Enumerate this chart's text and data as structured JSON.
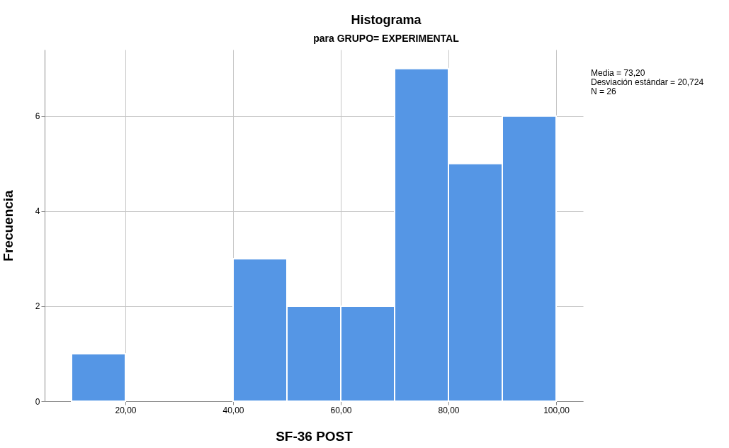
{
  "chart_data": {
    "type": "histogram",
    "title": "Histograma",
    "subtitle": "para GRUPO= EXPERIMENTAL",
    "xlabel": "SF-36 POST",
    "ylabel": "Frecuencia",
    "bins": [
      10,
      20,
      30,
      40,
      50,
      60,
      70,
      80,
      90,
      100
    ],
    "values": [
      1,
      0,
      0,
      3,
      2,
      2,
      7,
      5,
      6
    ],
    "color": "#5596e5",
    "xlim": [
      5,
      105
    ],
    "ylim": [
      0,
      7.4
    ],
    "xticks": [
      {
        "value": 20,
        "label": "20,00"
      },
      {
        "value": 40,
        "label": "40,00"
      },
      {
        "value": 60,
        "label": "60,00"
      },
      {
        "value": 80,
        "label": "80,00"
      },
      {
        "value": 100,
        "label": "100,00"
      }
    ],
    "yticks": [
      0,
      2,
      4,
      6
    ],
    "grid": true,
    "annotations": [
      "Media = 73,20",
      "Desviación estándar = 20,724",
      "N = 26"
    ]
  }
}
